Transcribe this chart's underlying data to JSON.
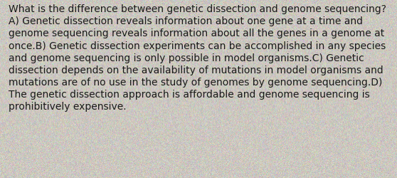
{
  "text": "What is the difference between genetic dissection and genome sequencing? A) Genetic dissection reveals information about one gene at a time and genome sequencing reveals information about all the genes in a genome at once.B) Genetic dissection experiments can be accomplished in any species and genome sequencing is only possible in model organisms.C) Genetic dissection depends on the availability of mutations in model organisms and mutations are of no use in the study of genomes by genome sequencing.D) The genetic dissection approach is affordable and genome sequencing is prohibitively expensive.",
  "background_color": "#ccc8c0",
  "text_color": "#1a1a1a",
  "font_size": 10.0,
  "fig_width": 5.58,
  "fig_height": 2.51,
  "dpi": 100
}
